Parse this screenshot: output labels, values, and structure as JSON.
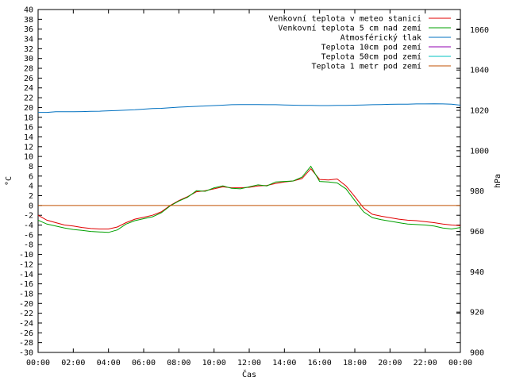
{
  "chart_data": {
    "type": "line",
    "title": "",
    "xlabel": "Čas",
    "ylabel_left": "°C",
    "ylabel_right": "hPa",
    "x_ticks": [
      "00:00",
      "02:00",
      "04:00",
      "06:00",
      "08:00",
      "10:00",
      "12:00",
      "14:00",
      "16:00",
      "18:00",
      "20:00",
      "22:00",
      "00:00"
    ],
    "xlim_hours": [
      0,
      24
    ],
    "ylim_left": [
      -30,
      40
    ],
    "ylim_right": [
      900,
      1070
    ],
    "y_ticks_left": [
      40,
      38,
      36,
      34,
      32,
      30,
      28,
      26,
      24,
      22,
      20,
      18,
      16,
      14,
      12,
      10,
      8,
      6,
      4,
      2,
      0,
      -2,
      -4,
      -6,
      -8,
      -10,
      -12,
      -14,
      -16,
      -18,
      -20,
      -22,
      -24,
      -26,
      -28,
      -30
    ],
    "y_ticks_right": [
      1060,
      1040,
      1020,
      1000,
      980,
      960,
      940,
      920,
      900
    ],
    "legend_position": "top-right",
    "x_hours": [
      0,
      0.5,
      1,
      1.5,
      2,
      2.5,
      3,
      3.5,
      4,
      4.5,
      5,
      5.5,
      6,
      6.5,
      7,
      7.5,
      8,
      8.5,
      9,
      9.5,
      10,
      10.5,
      11,
      11.5,
      12,
      12.5,
      13,
      13.5,
      14,
      14.5,
      15,
      15.5,
      16,
      16.5,
      17,
      17.5,
      18,
      18.5,
      19,
      19.5,
      20,
      20.5,
      21,
      21.5,
      22,
      22.5,
      23,
      23.5,
      24
    ],
    "series": [
      {
        "name": "Venkovní teplota v meteo stanici",
        "color": "#e00000",
        "axis": "left",
        "values": [
          -2,
          -3,
          -3.5,
          -4,
          -4.2,
          -4.5,
          -4.7,
          -4.8,
          -4.8,
          -4.4,
          -3.5,
          -2.8,
          -2.4,
          -2,
          -1.3,
          0,
          1,
          1.8,
          2.8,
          3,
          3.4,
          3.8,
          3.6,
          3.6,
          3.7,
          4,
          4.1,
          4.5,
          4.8,
          5,
          5.5,
          7.5,
          5.3,
          5.2,
          5.4,
          4,
          1.8,
          -0.5,
          -1.8,
          -2.2,
          -2.5,
          -2.8,
          -3,
          -3.1,
          -3.3,
          -3.5,
          -3.8,
          -4,
          -4.1
        ]
      },
      {
        "name": "Venkovní teplota 5 cm nad zemí",
        "color": "#00a000",
        "axis": "left",
        "values": [
          -3,
          -3.8,
          -4.2,
          -4.6,
          -4.9,
          -5.1,
          -5.3,
          -5.4,
          -5.5,
          -5,
          -3.8,
          -3.1,
          -2.7,
          -2.3,
          -1.5,
          -0.1,
          0.9,
          1.7,
          3,
          2.9,
          3.6,
          4,
          3.5,
          3.4,
          3.8,
          4.2,
          4,
          4.8,
          4.9,
          5,
          5.8,
          8,
          4.9,
          4.8,
          4.6,
          3.4,
          1,
          -1.3,
          -2.5,
          -2.9,
          -3.2,
          -3.5,
          -3.8,
          -3.9,
          -4,
          -4.2,
          -4.6,
          -4.8,
          -4.5
        ]
      },
      {
        "name": "Atmosférický tlak",
        "color": "#0070c0",
        "axis": "right",
        "values": [
          1019,
          1019,
          1019.3,
          1019.3,
          1019.3,
          1019.4,
          1019.5,
          1019.6,
          1019.8,
          1019.9,
          1020.1,
          1020.3,
          1020.6,
          1020.9,
          1021,
          1021.3,
          1021.6,
          1021.8,
          1022,
          1022.2,
          1022.4,
          1022.6,
          1022.8,
          1022.9,
          1022.9,
          1022.9,
          1022.8,
          1022.8,
          1022.7,
          1022.6,
          1022.5,
          1022.5,
          1022.4,
          1022.4,
          1022.5,
          1022.5,
          1022.6,
          1022.7,
          1022.8,
          1022.9,
          1023,
          1023.1,
          1023.1,
          1023.2,
          1023.2,
          1023.3,
          1023.2,
          1023.1,
          1022.6
        ]
      },
      {
        "name": "Teplota 10cm pod zemí",
        "color": "#9000b0",
        "axis": "left",
        "values": []
      },
      {
        "name": "Teplota 50cm pod zemí",
        "color": "#00c0c0",
        "axis": "left",
        "values": []
      },
      {
        "name": "Teplota 1 metr pod zemí",
        "color": "#c05000",
        "axis": "left",
        "values": [
          0,
          0,
          0,
          0,
          0,
          0,
          0,
          0,
          0,
          0,
          0,
          0,
          0,
          0,
          0,
          0,
          0,
          0,
          0,
          0,
          0,
          0,
          0,
          0,
          0,
          0,
          0,
          0,
          0,
          0,
          0,
          0,
          0,
          0,
          0,
          0,
          0,
          0,
          0,
          0,
          0,
          0,
          0,
          0,
          0,
          0,
          0,
          0,
          0
        ]
      }
    ]
  }
}
